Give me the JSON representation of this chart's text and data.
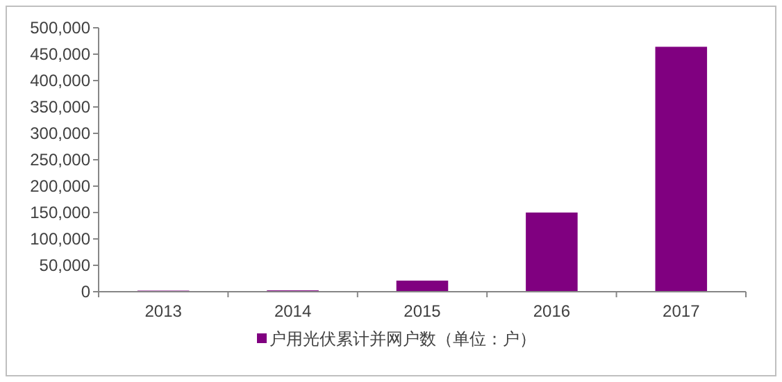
{
  "chart_data": {
    "type": "bar",
    "categories": [
      "2013",
      "2014",
      "2015",
      "2016",
      "2017"
    ],
    "series": [
      {
        "name": "户用光伏累计并网户数（单位：户）",
        "color": "#800080",
        "values": [
          2000,
          2500,
          21000,
          150000,
          464000
        ]
      }
    ],
    "ylim": [
      0,
      500000
    ],
    "yticks": [
      {
        "value": 0,
        "label": "0"
      },
      {
        "value": 50000,
        "label": "50,000"
      },
      {
        "value": 100000,
        "label": "100,000"
      },
      {
        "value": 150000,
        "label": "150,000"
      },
      {
        "value": 200000,
        "label": "200,000"
      },
      {
        "value": 250000,
        "label": "250,000"
      },
      {
        "value": 300000,
        "label": "300,000"
      },
      {
        "value": 350000,
        "label": "350,000"
      },
      {
        "value": 400000,
        "label": "400,000"
      },
      {
        "value": 450000,
        "label": "450,000"
      },
      {
        "value": 500000,
        "label": "500,000"
      }
    ],
    "grid": false,
    "legend": "bottom"
  }
}
